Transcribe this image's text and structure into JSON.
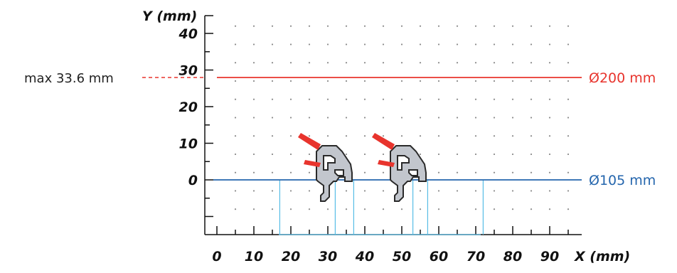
{
  "diagram": {
    "y_axis_title": "Y (mm)",
    "x_axis_title": "X (mm)",
    "y_ticks": [
      {
        "value": 40,
        "label": "40"
      },
      {
        "value": 30,
        "label": "30"
      },
      {
        "value": 20,
        "label": "20"
      },
      {
        "value": 10,
        "label": "10"
      },
      {
        "value": 0,
        "label": "0"
      }
    ],
    "x_ticks": [
      {
        "value": 0,
        "label": "0"
      },
      {
        "value": 10,
        "label": "10"
      },
      {
        "value": 20,
        "label": "20"
      },
      {
        "value": 30,
        "label": "30"
      },
      {
        "value": 40,
        "label": "40"
      },
      {
        "value": 50,
        "label": "50"
      },
      {
        "value": 60,
        "label": "60"
      },
      {
        "value": 70,
        "label": "70"
      },
      {
        "value": 80,
        "label": "80"
      },
      {
        "value": 90,
        "label": "90"
      }
    ],
    "max_label": "max 33.6 mm",
    "max_value": 33.6,
    "upper_line_label": "Ø200 mm",
    "lower_line_label": "Ø105 mm",
    "profile_positions_x": [
      17,
      32,
      37,
      53,
      57,
      72
    ],
    "colors": {
      "upper_line": "#e8342d",
      "lower_line": "#2566ad",
      "guide_lines": "#57bde6",
      "profile_fill": "#c2c6cd",
      "profile_stroke": "#2a2a2a",
      "wiper": "#e8342d"
    }
  }
}
